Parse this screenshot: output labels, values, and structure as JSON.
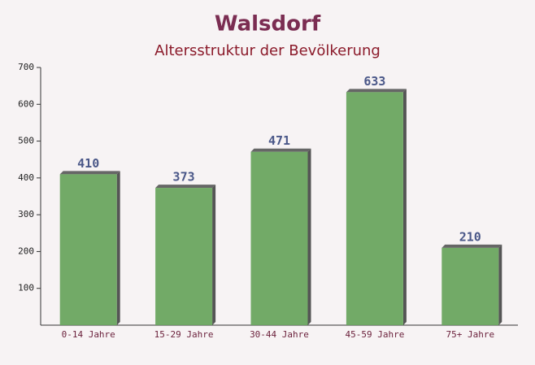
{
  "chart_data": {
    "type": "bar",
    "title": "Walsdorf",
    "subtitle": "Altersstruktur der Bevölkerung",
    "categories": [
      "0-14 Jahre",
      "15-29 Jahre",
      "30-44 Jahre",
      "45-59 Jahre",
      "75+ Jahre"
    ],
    "values": [
      410,
      373,
      471,
      633,
      210
    ],
    "color": "#6aa55f",
    "ylim": [
      0,
      700
    ],
    "yticks": [
      100,
      200,
      300,
      400,
      500,
      600,
      700
    ],
    "grid": false
  }
}
